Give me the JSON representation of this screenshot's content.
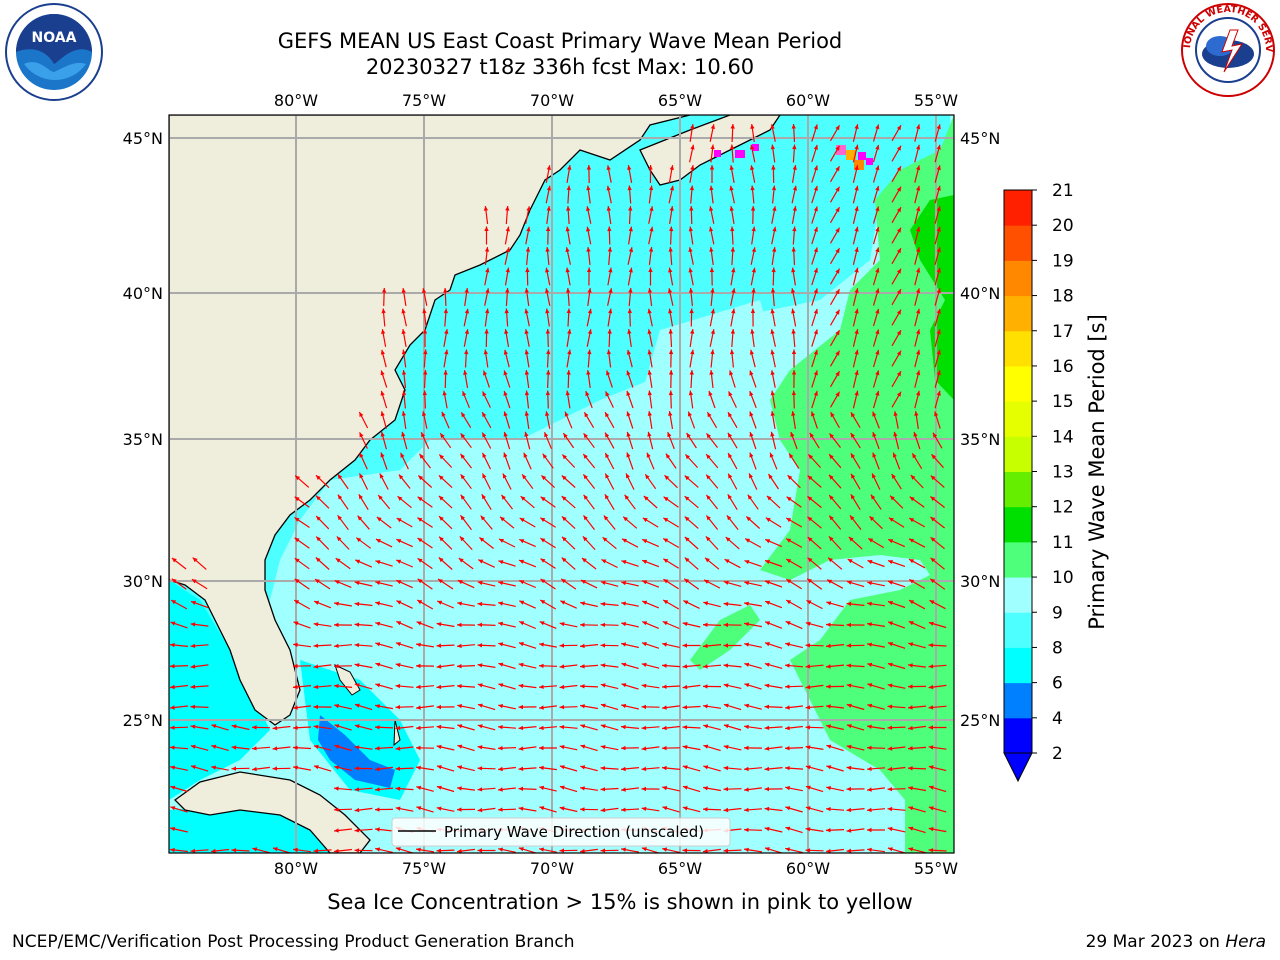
{
  "title": {
    "line1": "GEFS MEAN US East Coast Primary Wave Mean Period",
    "line2": "20230327 t18z 336h fcst   Max: 10.60"
  },
  "logos": {
    "left": {
      "icon": "noaa-logo",
      "text": "NOAA"
    },
    "right": {
      "icon": "nws-logo",
      "text": "NATIONAL WEATHER SERVICE"
    }
  },
  "map": {
    "projection": "lat-lon",
    "lon_range": [
      -85,
      -54.5
    ],
    "lat_range": [
      20.5,
      46
    ],
    "lon_ticks": [
      "80°W",
      "75°W",
      "70°W",
      "65°W",
      "60°W",
      "55°W"
    ],
    "lat_ticks": [
      "45°N",
      "40°N",
      "35°N",
      "30°N",
      "25°N"
    ],
    "grid": true,
    "land_color": "#efeedc",
    "arrow_color": "#ff0000",
    "legend": {
      "label": "Primary Wave Direction (unscaled)",
      "placement": "bottom-center"
    }
  },
  "colorbar": {
    "label": "Primary Wave Mean Period [s]",
    "ticks": [
      "21",
      "20",
      "19",
      "18",
      "17",
      "16",
      "15",
      "14",
      "13",
      "12",
      "11",
      "10",
      "9",
      "8",
      "6",
      "4",
      "2"
    ],
    "levels": [
      2,
      4,
      6,
      8,
      9,
      10,
      11,
      12,
      13,
      14,
      15,
      16,
      17,
      18,
      19,
      20,
      21
    ],
    "colors": [
      "#0000ff",
      "#0080ff",
      "#00ffff",
      "#4dffff",
      "#a0ffff",
      "#4dff7a",
      "#00e000",
      "#66ee00",
      "#c8ff00",
      "#e6ff00",
      "#ffff00",
      "#ffe000",
      "#ffb000",
      "#ff8800",
      "#ff5000",
      "#ff2000"
    ],
    "extend": "min"
  },
  "ice_note": "Sea Ice Concentration > 15% is shown in pink to yellow",
  "footer": {
    "left": "NCEP/EMC/Verification Post Processing Product Generation Branch",
    "right_date": "29 Mar 2023 on ",
    "right_host": "Hera"
  }
}
